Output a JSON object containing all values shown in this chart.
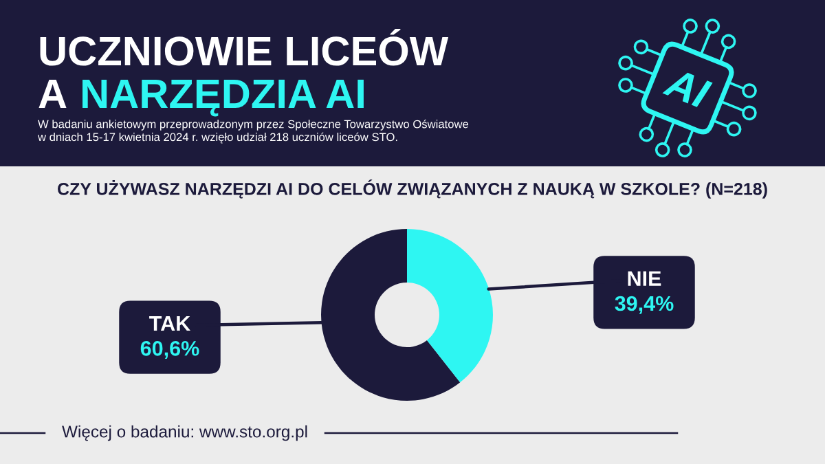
{
  "chart_data": {
    "type": "donut",
    "title": "UCZNIOWIE LICEÓW\nA NARZĘDZIA AI",
    "subtitle": "W badaniu ankietowym przeprowadzonym przez Społeczne Towarzystwo Oświatowe\nw dniach 15-17 kwietnia 2024 r. wzięło udział 218 uczniów liceów STO.",
    "annotations": [
      "CZY UŻYWASZ NARZĘDZI AI DO CELÓW ZWIĄZANYCH Z NAUKĄ W SZKOLE? (N=218)",
      "Więcej o badaniu: www.sto.org.pl"
    ],
    "categories": [
      "TAK",
      "NIE"
    ],
    "values": [
      60.6,
      39.4
    ],
    "colors": [
      "#1c1a3b",
      "#2ef6f2"
    ],
    "value_labels": [
      "60,6%",
      "39,4%"
    ]
  }
}
